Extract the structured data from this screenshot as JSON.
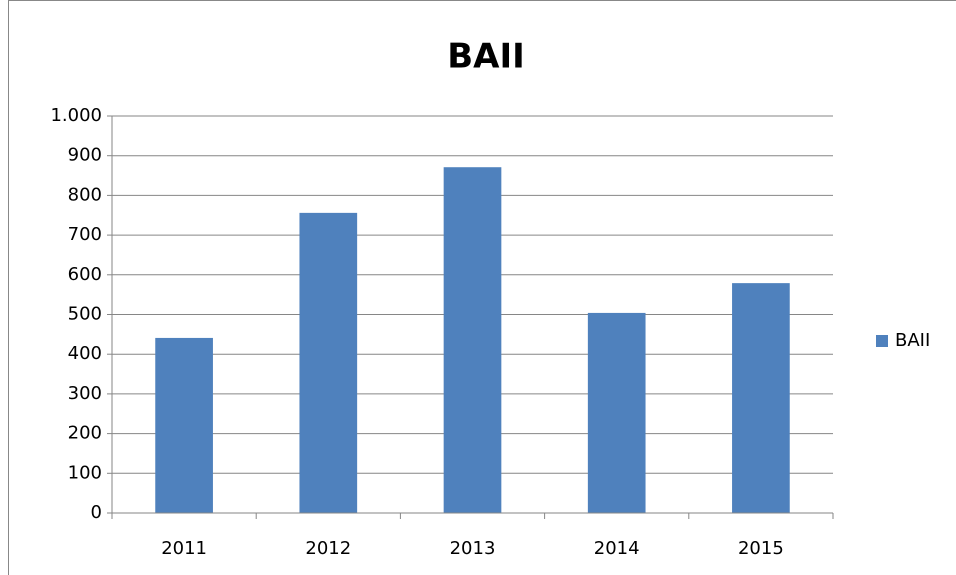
{
  "chart_data": {
    "type": "bar",
    "title": "BAII",
    "categories": [
      "2011",
      "2012",
      "2013",
      "2014",
      "2015"
    ],
    "series": [
      {
        "name": "BAII",
        "color": "#4f81bd",
        "values": [
          441,
          756,
          871,
          504,
          579
        ]
      }
    ],
    "ylim": [
      0,
      1000
    ],
    "yticks": [
      0,
      100,
      200,
      300,
      400,
      500,
      600,
      700,
      800,
      900,
      {
        "value": 1000,
        "label": "1.000"
      }
    ],
    "grid": true,
    "legend": "right"
  }
}
